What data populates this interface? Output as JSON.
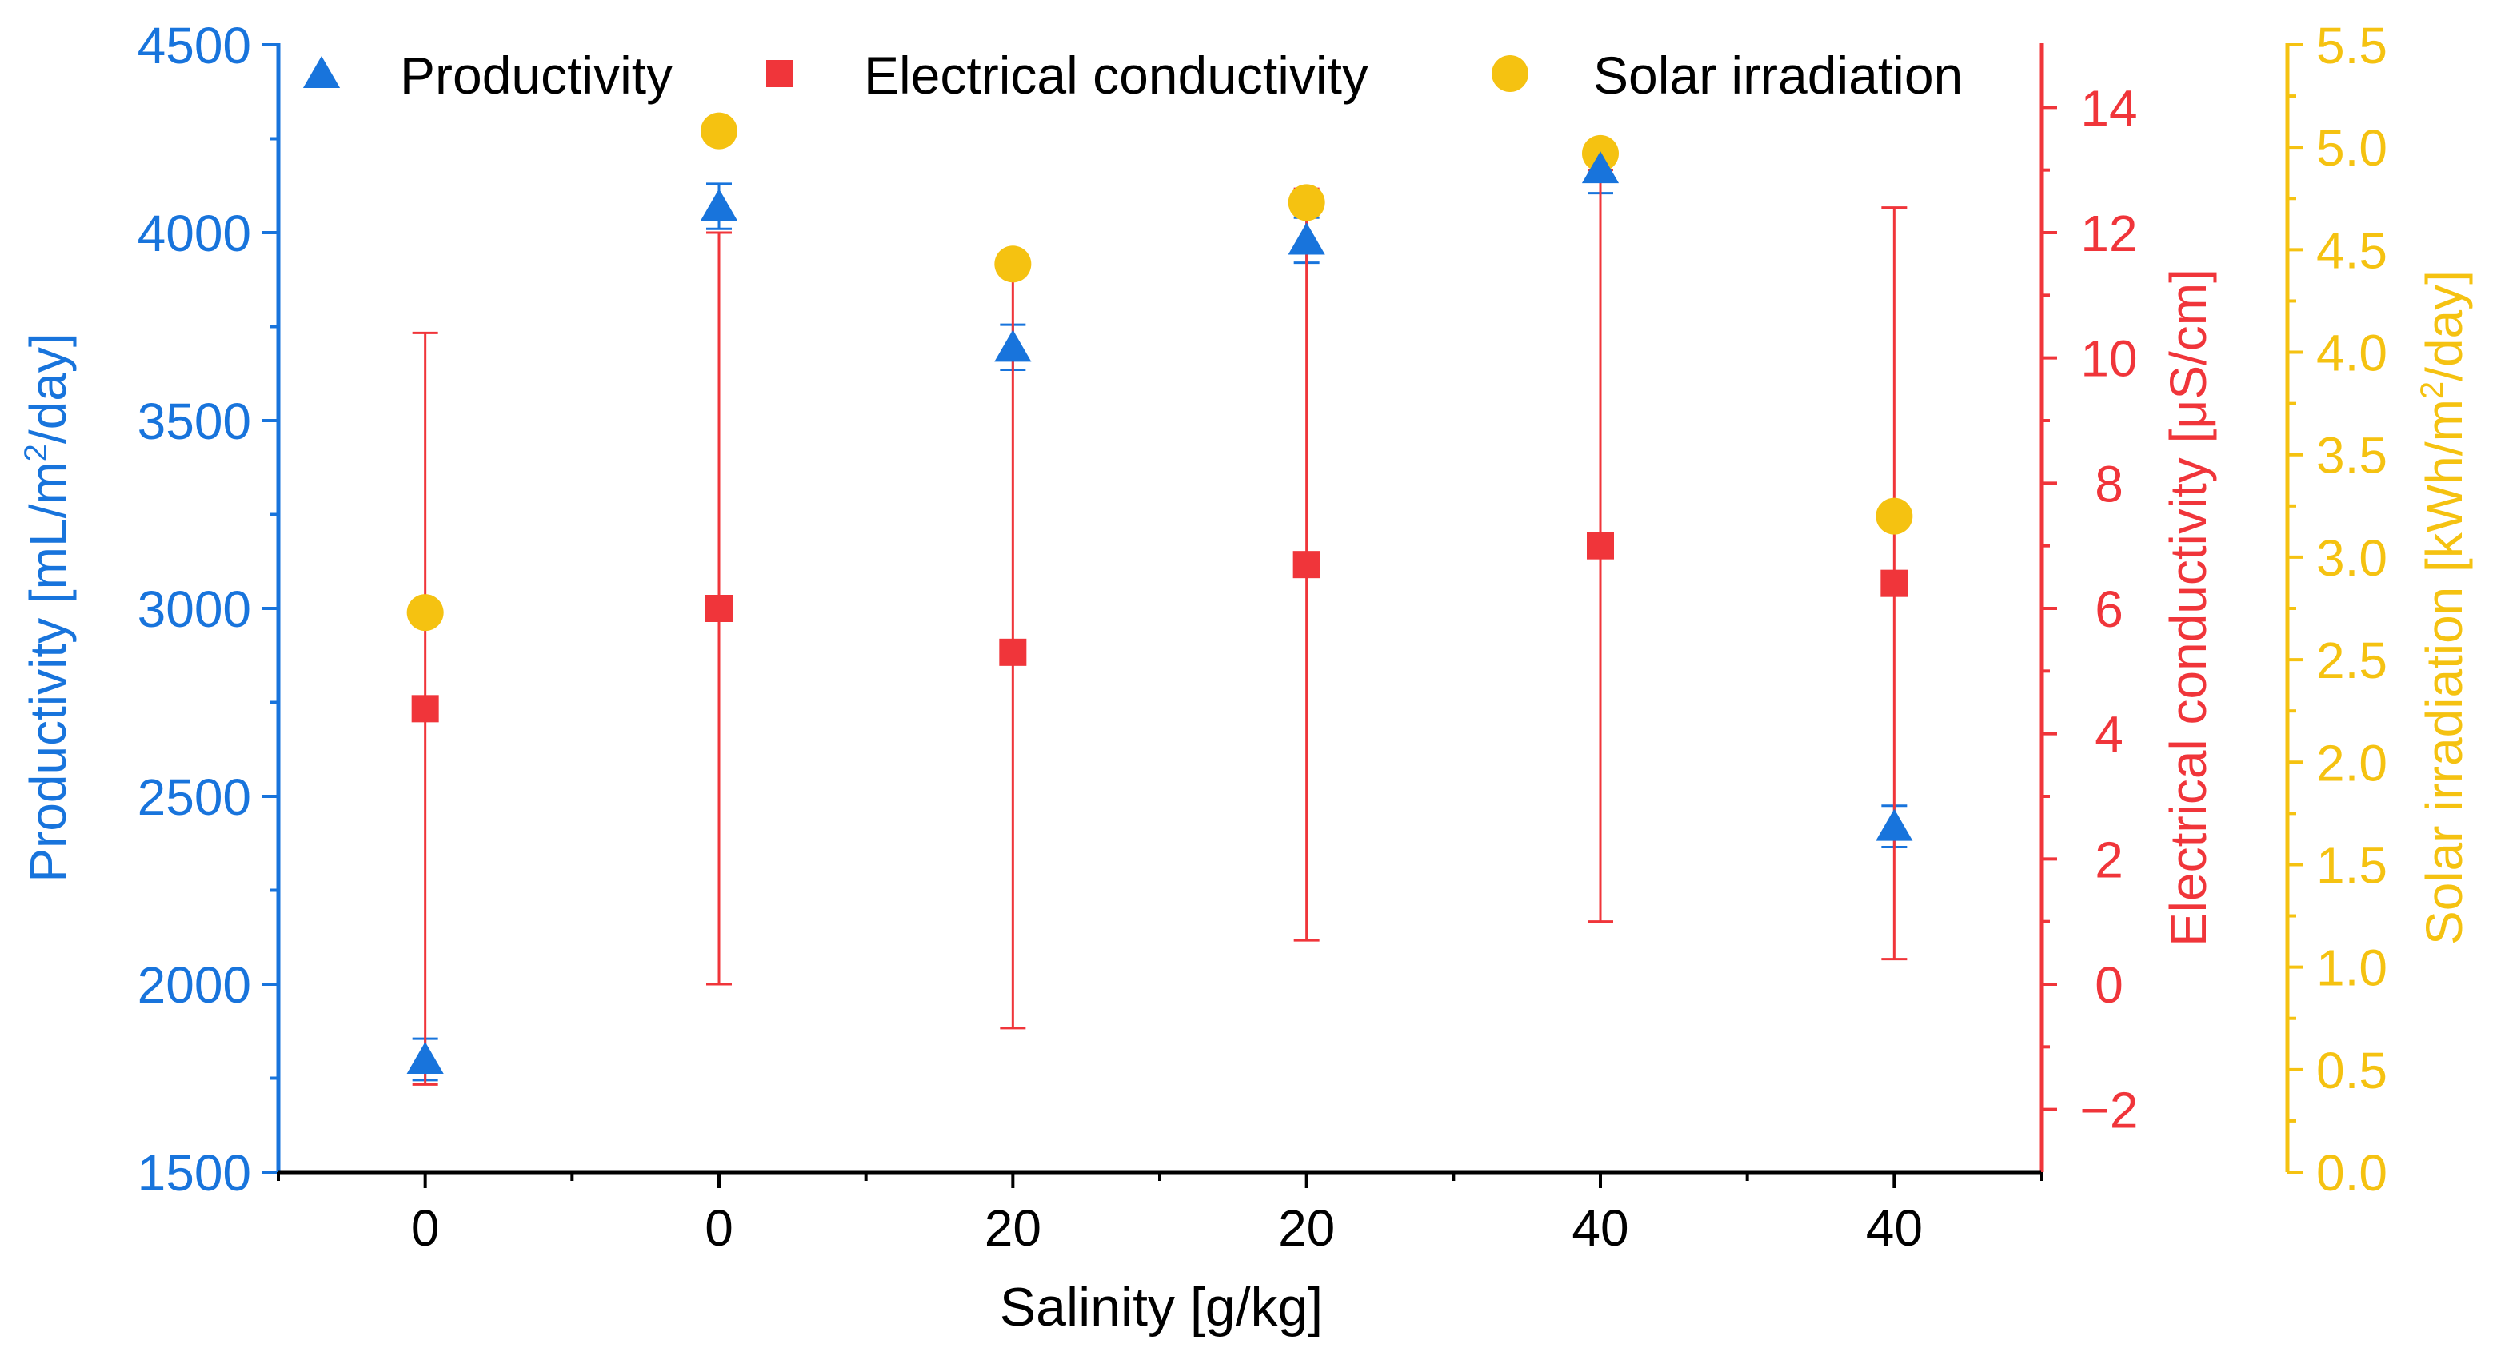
{
  "chart_data": {
    "type": "scatter",
    "title": "",
    "xlabel": "Salinity [g/kg]",
    "categories": [
      "0",
      "0",
      "20",
      "20",
      "40",
      "40"
    ],
    "xlim": [
      -0.5,
      5.5
    ],
    "legend_position": "top",
    "grid": false,
    "axes": {
      "left": {
        "label_prefix": "Productivity [mL/m",
        "label_sup": "2",
        "label_suffix": "/day]",
        "ylim": [
          1500,
          4500
        ],
        "ticks": [
          1500,
          2000,
          2500,
          3000,
          3500,
          4000,
          4500
        ],
        "tick_labels": [
          "1500",
          "2000",
          "2500",
          "3000",
          "3500",
          "4000",
          "4500"
        ],
        "color": "#1874DC"
      },
      "right1": {
        "label": "Electrical conductivity [μS/cm]",
        "ylim": [
          -3,
          15
        ],
        "ticks": [
          -2,
          0,
          2,
          4,
          6,
          8,
          10,
          12,
          14
        ],
        "tick_labels": [
          "−2",
          "0",
          "2",
          "4",
          "6",
          "8",
          "10",
          "12",
          "14"
        ],
        "color": "#F0353A"
      },
      "right2": {
        "label_prefix": "Solar irradiation [kWh/m",
        "label_sup": "2",
        "label_suffix": "/day]",
        "ylim": [
          0,
          5.5
        ],
        "ticks": [
          0,
          0.5,
          1,
          1.5,
          2,
          2.5,
          3,
          3.5,
          4,
          4.5,
          5,
          5.5
        ],
        "tick_labels": [
          "0.0",
          "0.5",
          "1.0",
          "1.5",
          "2.0",
          "2.5",
          "3.0",
          "3.5",
          "4.0",
          "4.5",
          "5.0",
          "5.5"
        ],
        "color": "#F5C211"
      }
    },
    "series": [
      {
        "name": "Productivity",
        "marker": "triangle",
        "axis": "left",
        "color": "#1874DC",
        "values": [
          1800,
          4070,
          3695,
          3980,
          4170,
          2420
        ],
        "errors": [
          55,
          60,
          60,
          60,
          65,
          55
        ]
      },
      {
        "name": "Electrical conductivity",
        "marker": "square",
        "axis": "right1",
        "color": "#F0353A",
        "values": [
          4.4,
          6.0,
          5.3,
          6.7,
          7.0,
          6.4
        ],
        "errors": [
          6.0,
          6.0,
          6.0,
          6.0,
          6.0,
          6.0
        ]
      },
      {
        "name": "Solar irradiation",
        "marker": "circle",
        "axis": "right2",
        "color": "#F5C211",
        "values": [
          2.73,
          5.08,
          4.43,
          4.73,
          4.97,
          3.2
        ]
      }
    ]
  }
}
